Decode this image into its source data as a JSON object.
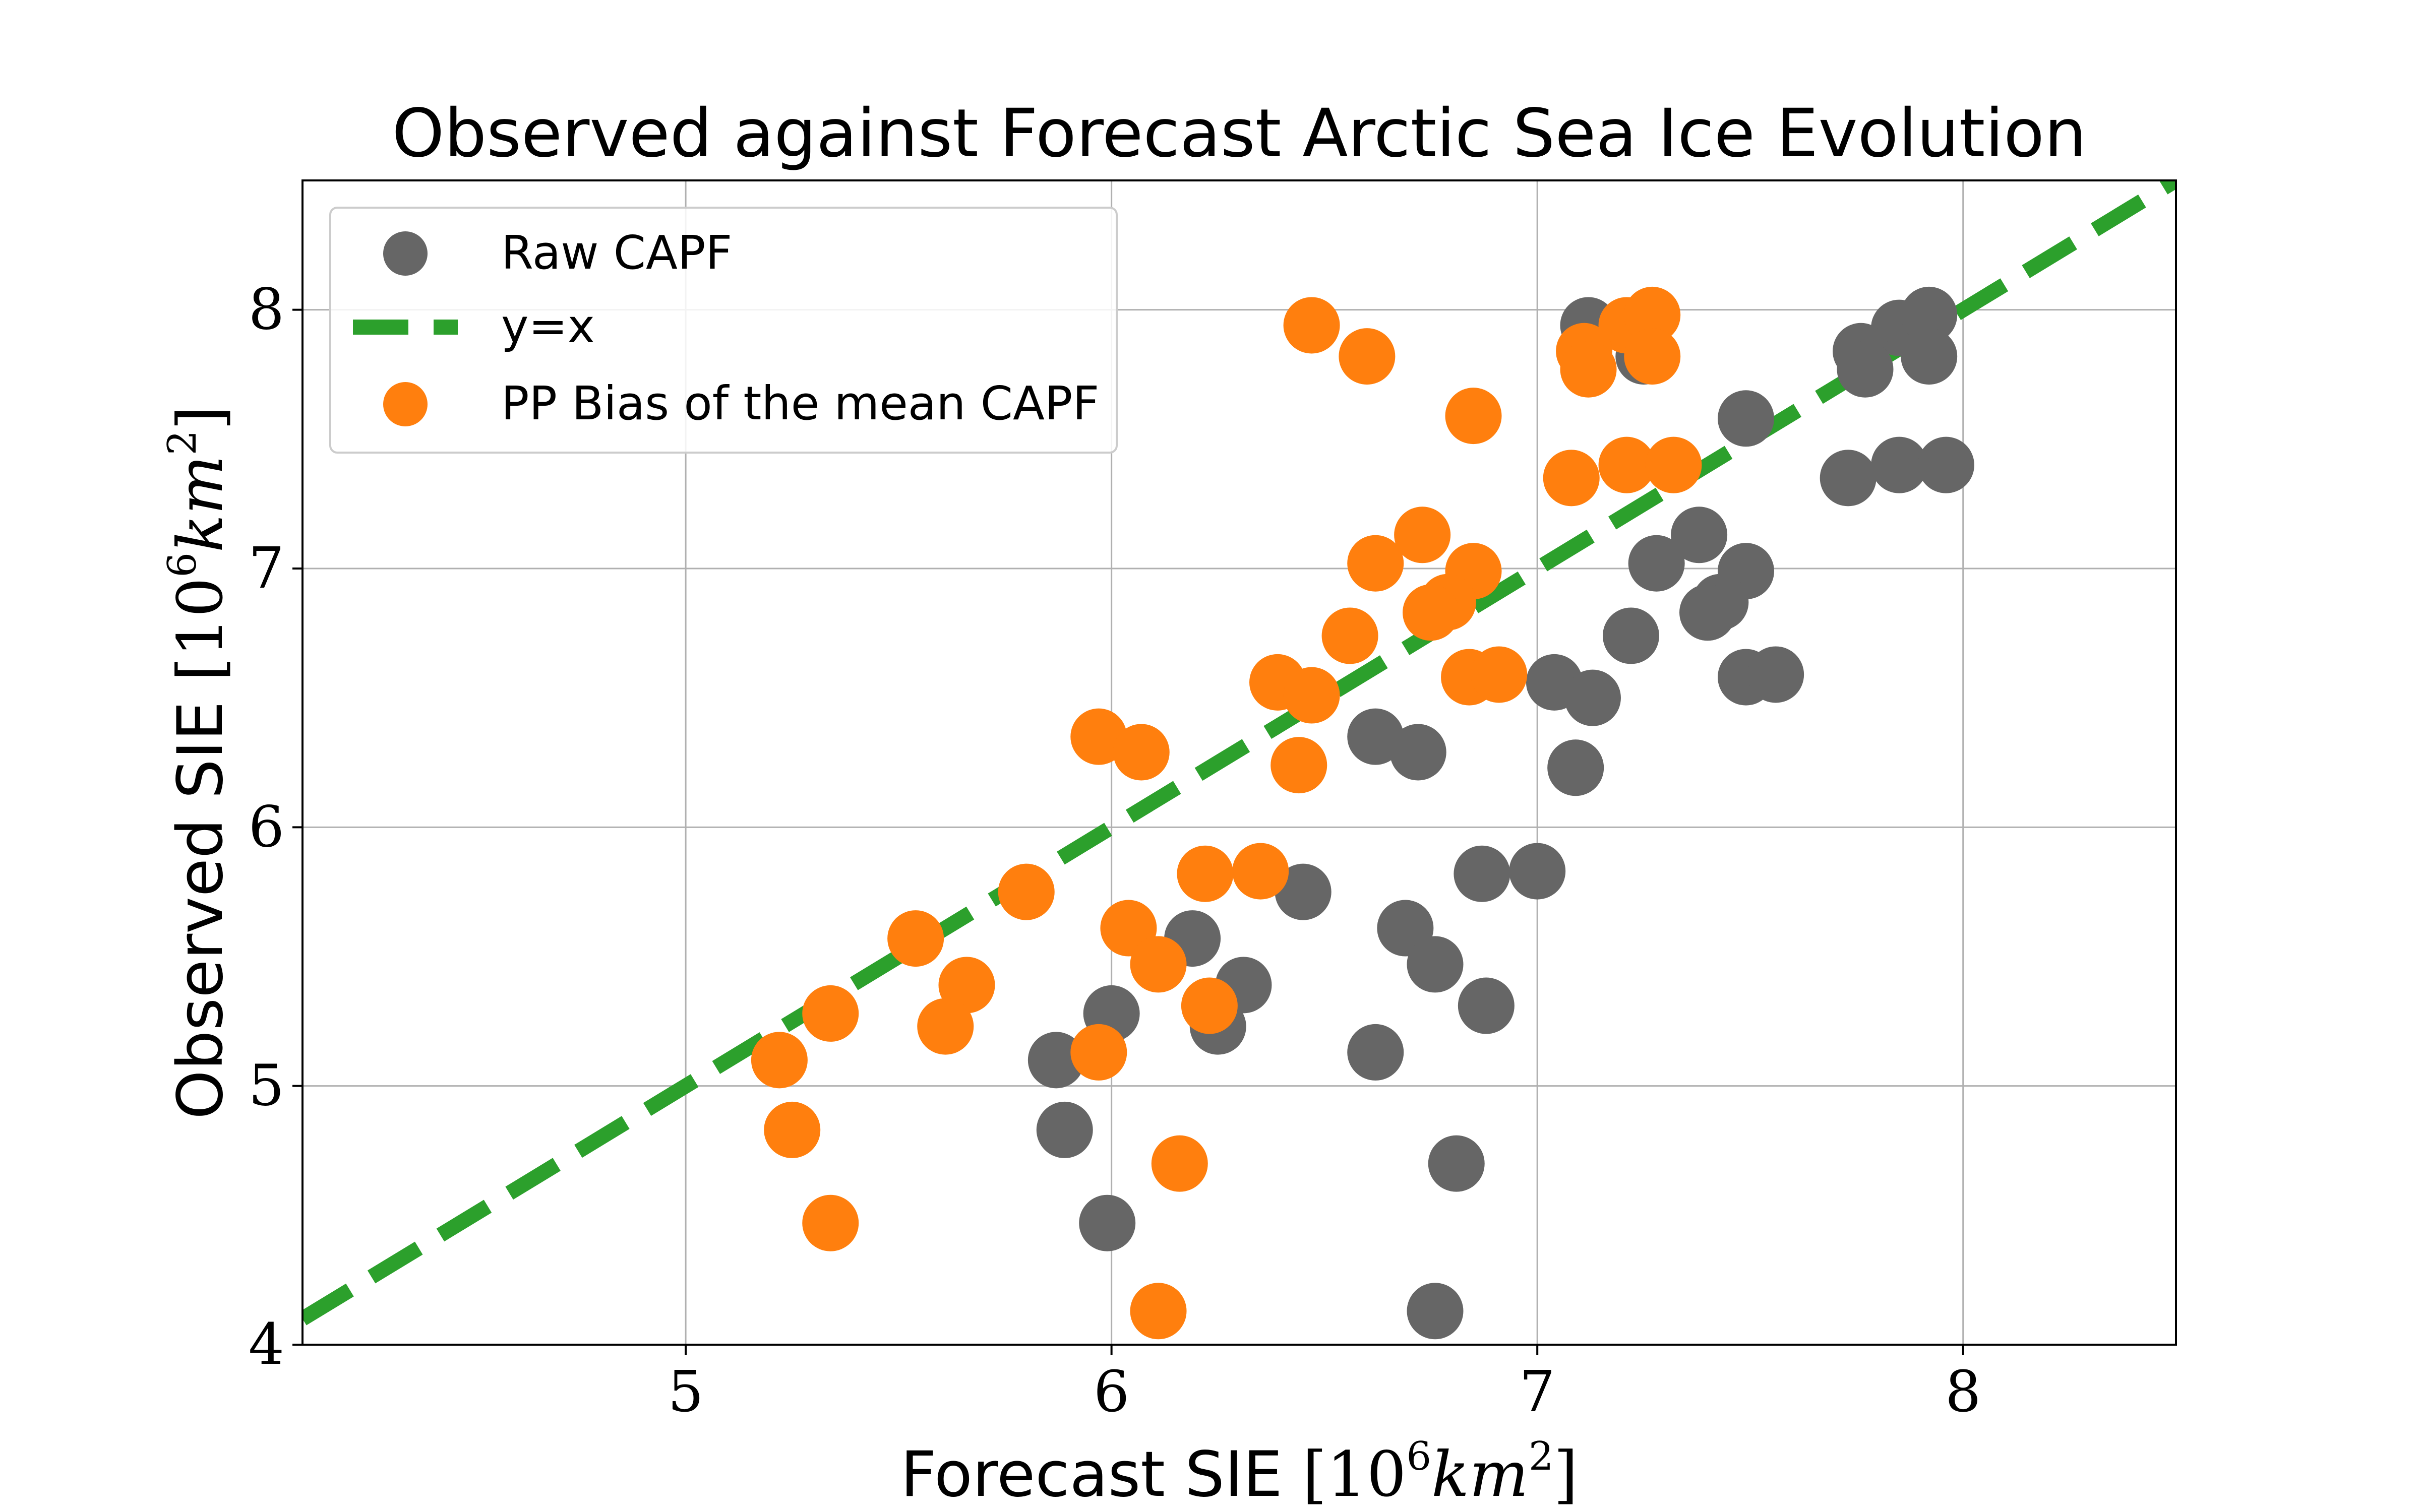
{
  "chart_data": {
    "type": "scatter",
    "title": "Observed against Forecast Arctic Sea Ice Evolution",
    "xlabel": "Forecast SIE [10^6 km^2]",
    "ylabel": "Observed SIE [10^6 km^2]",
    "xlabel_text": "Forecast SIE ",
    "ylabel_text": "Observed SIE ",
    "unit_base": "10",
    "unit_exp": "6",
    "unit_var": "km",
    "unit_var_exp": "2",
    "xlim": [
      4.1,
      8.5
    ],
    "ylim": [
      4.0,
      8.5
    ],
    "xticks": [
      5,
      6,
      7,
      8
    ],
    "yticks": [
      4,
      5,
      6,
      7,
      8
    ],
    "grid": true,
    "legend_position": "top-left",
    "series": [
      {
        "name": "Raw CAPF",
        "kind": "scatter",
        "color": "#666666",
        "points": [
          [
            7.12,
            7.94
          ],
          [
            7.25,
            7.82
          ],
          [
            7.85,
            7.93
          ],
          [
            7.92,
            7.98
          ],
          [
            7.76,
            7.84
          ],
          [
            7.77,
            7.77
          ],
          [
            7.92,
            7.82
          ],
          [
            7.49,
            7.58
          ],
          [
            7.73,
            7.35
          ],
          [
            7.85,
            7.4
          ],
          [
            7.96,
            7.4
          ],
          [
            7.38,
            7.13
          ],
          [
            7.28,
            7.02
          ],
          [
            7.49,
            6.99
          ],
          [
            7.43,
            6.87
          ],
          [
            7.4,
            6.83
          ],
          [
            7.22,
            6.74
          ],
          [
            7.49,
            6.58
          ],
          [
            7.56,
            6.59
          ],
          [
            7.04,
            6.56
          ],
          [
            7.13,
            6.5
          ],
          [
            6.62,
            6.35
          ],
          [
            6.72,
            6.29
          ],
          [
            7.09,
            6.23
          ],
          [
            7.0,
            5.83
          ],
          [
            6.87,
            5.82
          ],
          [
            6.45,
            5.75
          ],
          [
            6.69,
            5.61
          ],
          [
            6.19,
            5.57
          ],
          [
            6.76,
            5.47
          ],
          [
            6.31,
            5.39
          ],
          [
            6.88,
            5.31
          ],
          [
            6.0,
            5.28
          ],
          [
            6.25,
            5.23
          ],
          [
            5.87,
            5.1
          ],
          [
            6.62,
            5.13
          ],
          [
            5.89,
            4.83
          ],
          [
            6.81,
            4.7
          ],
          [
            5.99,
            4.47
          ],
          [
            6.76,
            4.13
          ]
        ]
      },
      {
        "name": "y=x",
        "kind": "line",
        "color": "#2ca02c",
        "dash": true,
        "points": [
          [
            4.1,
            4.1
          ],
          [
            8.5,
            8.5
          ]
        ]
      },
      {
        "name": "PP Bias of the mean CAPF",
        "kind": "scatter",
        "color": "#ff7f0e",
        "points": [
          [
            6.47,
            7.94
          ],
          [
            6.6,
            7.82
          ],
          [
            7.21,
            7.94
          ],
          [
            7.27,
            7.98
          ],
          [
            7.11,
            7.84
          ],
          [
            7.12,
            7.77
          ],
          [
            7.27,
            7.82
          ],
          [
            6.85,
            7.59
          ],
          [
            7.08,
            7.35
          ],
          [
            7.21,
            7.4
          ],
          [
            7.32,
            7.4
          ],
          [
            6.73,
            7.13
          ],
          [
            6.62,
            7.02
          ],
          [
            6.85,
            6.99
          ],
          [
            6.79,
            6.87
          ],
          [
            6.75,
            6.83
          ],
          [
            6.56,
            6.74
          ],
          [
            6.84,
            6.58
          ],
          [
            6.91,
            6.59
          ],
          [
            6.39,
            6.56
          ],
          [
            6.47,
            6.51
          ],
          [
            5.97,
            6.35
          ],
          [
            6.07,
            6.29
          ],
          [
            6.44,
            6.24
          ],
          [
            6.35,
            5.83
          ],
          [
            6.22,
            5.82
          ],
          [
            5.8,
            5.75
          ],
          [
            6.04,
            5.61
          ],
          [
            5.54,
            5.57
          ],
          [
            6.11,
            5.47
          ],
          [
            5.66,
            5.39
          ],
          [
            6.23,
            5.31
          ],
          [
            5.34,
            5.28
          ],
          [
            5.61,
            5.23
          ],
          [
            5.22,
            5.1
          ],
          [
            5.97,
            5.13
          ],
          [
            5.25,
            4.83
          ],
          [
            6.16,
            4.7
          ],
          [
            5.34,
            4.47
          ],
          [
            6.11,
            4.13
          ]
        ]
      }
    ]
  }
}
